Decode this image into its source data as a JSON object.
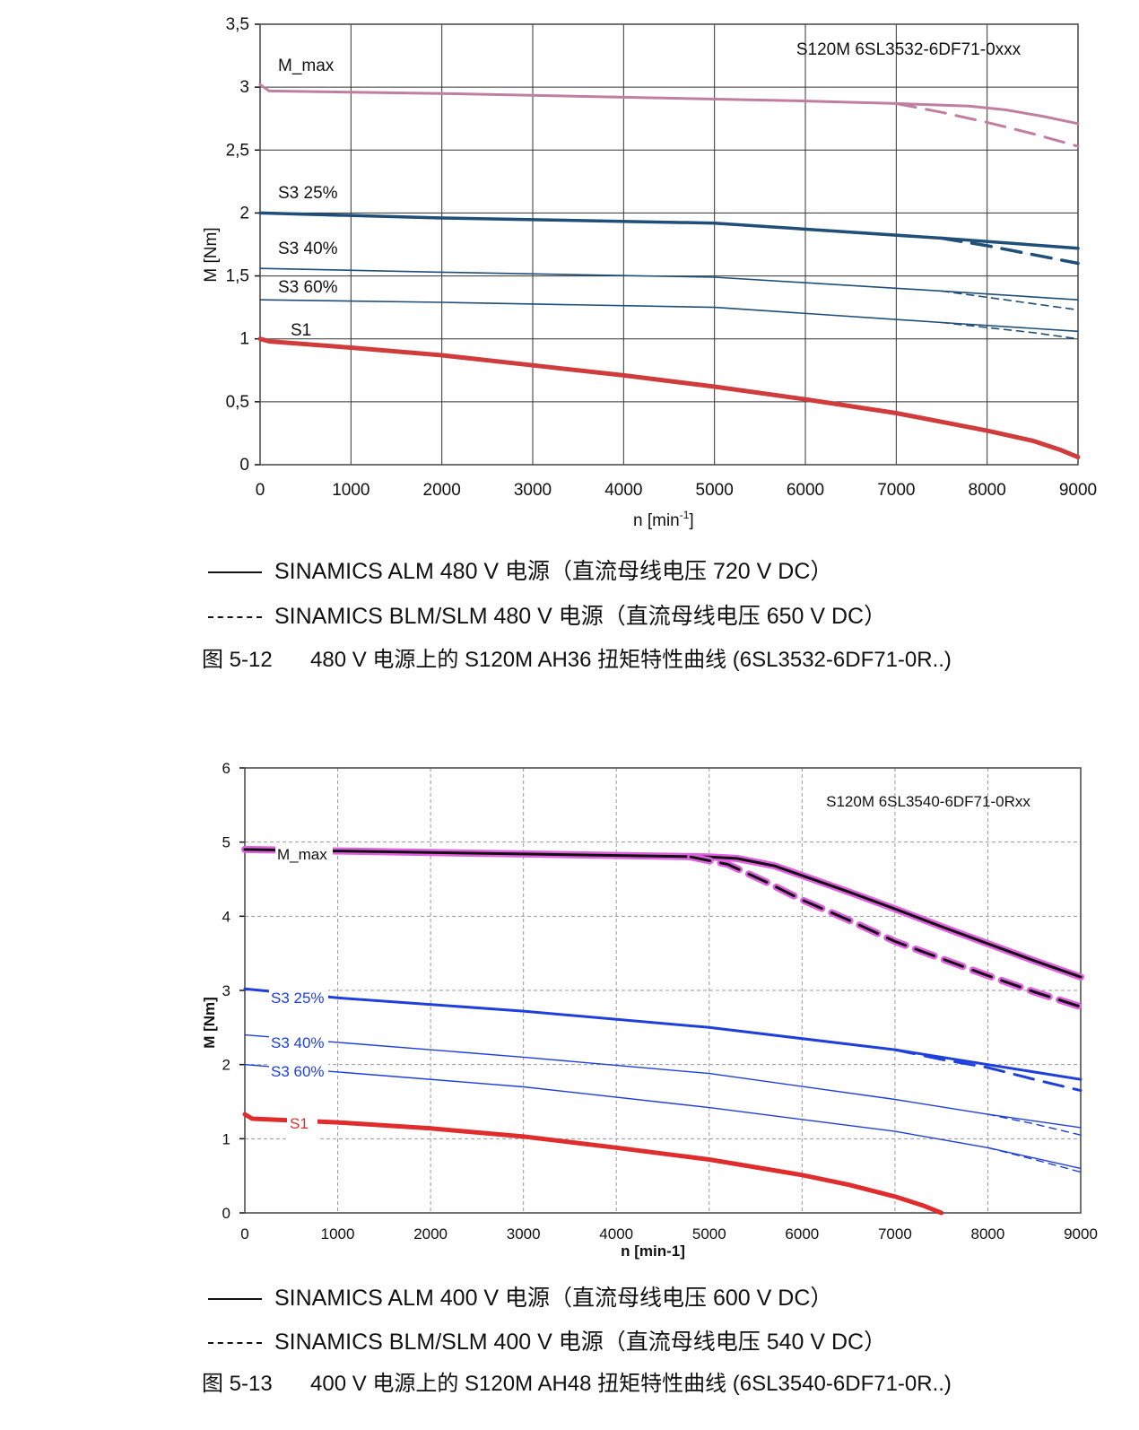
{
  "chart_data": [
    {
      "type": "line",
      "title": "S120M 6SL3532-6DF71-0xxx",
      "xlabel": "n  [min",
      "xlabel_sup": "-1",
      "xlabel_end": "]",
      "ylabel": "M [Nm]",
      "xlim": [
        0,
        9000
      ],
      "ylim": [
        0,
        3.5
      ],
      "xticks": [
        "0",
        "1000",
        "2000",
        "3000",
        "4000",
        "5000",
        "6000",
        "7000",
        "8000",
        "9000"
      ],
      "yticks": [
        "0",
        "0,5",
        "1",
        "1,5",
        "2",
        "2,5",
        "3",
        "3,5"
      ],
      "grid": true,
      "series": [
        {
          "name": "M_max",
          "color": "#c07fa0",
          "width": 3,
          "dash": false,
          "x": [
            0,
            100,
            2000,
            4000,
            6000,
            7000,
            7800,
            8200,
            8600,
            9000
          ],
          "y": [
            3.02,
            2.97,
            2.95,
            2.92,
            2.89,
            2.87,
            2.85,
            2.82,
            2.77,
            2.71
          ]
        },
        {
          "name": "",
          "color": "#c07fa0",
          "width": 3,
          "dash": true,
          "x": [
            7000,
            7500,
            8000,
            8500,
            9000
          ],
          "y": [
            2.87,
            2.8,
            2.72,
            2.63,
            2.53
          ]
        },
        {
          "name": "S3 25%",
          "color": "#1f4e79",
          "width": 3.5,
          "dash": false,
          "x": [
            0,
            2000,
            5000,
            7500,
            9000
          ],
          "y": [
            2.0,
            1.96,
            1.92,
            1.8,
            1.72
          ]
        },
        {
          "name": "",
          "color": "#1f4e79",
          "width": 3.5,
          "dash": true,
          "x": [
            7500,
            8000,
            8500,
            9000
          ],
          "y": [
            1.8,
            1.74,
            1.67,
            1.6
          ]
        },
        {
          "name": "S3 40%",
          "color": "#1f4e79",
          "width": 1.6,
          "dash": false,
          "x": [
            0,
            2000,
            5000,
            7500,
            9000
          ],
          "y": [
            1.56,
            1.53,
            1.49,
            1.38,
            1.31
          ]
        },
        {
          "name": "",
          "color": "#1f4e79",
          "width": 1.6,
          "dash": true,
          "x": [
            7500,
            8000,
            8500,
            9000
          ],
          "y": [
            1.38,
            1.33,
            1.28,
            1.23
          ]
        },
        {
          "name": "S3 60%",
          "color": "#1f4e79",
          "width": 1.6,
          "dash": false,
          "x": [
            0,
            2000,
            5000,
            7500,
            9000
          ],
          "y": [
            1.31,
            1.29,
            1.25,
            1.13,
            1.06
          ]
        },
        {
          "name": "",
          "color": "#1f4e79",
          "width": 1.6,
          "dash": true,
          "x": [
            7500,
            8000,
            8500,
            9000
          ],
          "y": [
            1.13,
            1.09,
            1.05,
            1.0
          ]
        },
        {
          "name": "S1",
          "color": "#d03c3c",
          "width": 5,
          "dash": false,
          "x": [
            0,
            100,
            1000,
            2000,
            3000,
            4000,
            5000,
            6000,
            7000,
            8000,
            8500,
            8800,
            9000
          ],
          "y": [
            1.0,
            0.98,
            0.93,
            0.87,
            0.79,
            0.71,
            0.62,
            0.52,
            0.41,
            0.27,
            0.19,
            0.12,
            0.06
          ]
        }
      ]
    },
    {
      "type": "line",
      "title": "S120M 6SL3540-6DF71-0Rxx",
      "xlabel": "n  [min-1]",
      "ylabel": "M  [Nm]",
      "xlim": [
        0,
        9000
      ],
      "ylim": [
        0,
        6
      ],
      "xticks": [
        "0",
        "1000",
        "2000",
        "3000",
        "4000",
        "5000",
        "6000",
        "7000",
        "8000",
        "9000"
      ],
      "yticks": [
        "0",
        "1",
        "2",
        "3",
        "4",
        "5",
        "6"
      ],
      "grid": true,
      "series": [
        {
          "name": "M_max",
          "color": "#111111",
          "halo": "#e060e0",
          "width": 3,
          "dash": false,
          "x": [
            0,
            1000,
            3000,
            5000,
            5300,
            5700,
            6000,
            6500,
            7000,
            7500,
            8000,
            8500,
            9000
          ],
          "y": [
            4.9,
            4.88,
            4.84,
            4.8,
            4.78,
            4.68,
            4.55,
            4.33,
            4.1,
            3.86,
            3.63,
            3.4,
            3.18
          ]
        },
        {
          "name": "",
          "color": "#111111",
          "halo": "#e060e0",
          "width": 3,
          "dash": true,
          "x": [
            4800,
            5200,
            5600,
            6000,
            6500,
            7000,
            7500,
            8000,
            8500,
            9000
          ],
          "y": [
            4.8,
            4.7,
            4.47,
            4.22,
            3.95,
            3.66,
            3.43,
            3.2,
            2.98,
            2.78
          ]
        },
        {
          "name": "S3 25%",
          "color": "#1f3fdc",
          "width": 3,
          "dash": false,
          "x": [
            0,
            1000,
            3000,
            5000,
            7000,
            8000,
            9000
          ],
          "y": [
            3.02,
            2.9,
            2.72,
            2.5,
            2.2,
            2.0,
            1.8
          ]
        },
        {
          "name": "",
          "color": "#1f3fdc",
          "width": 3,
          "dash": true,
          "x": [
            7000,
            7500,
            8000,
            8500,
            9000
          ],
          "y": [
            2.2,
            2.07,
            1.96,
            1.8,
            1.65
          ]
        },
        {
          "name": "S3 40%",
          "color": "#1f3fdc",
          "width": 1.4,
          "dash": false,
          "x": [
            0,
            1000,
            3000,
            5000,
            7000,
            8000,
            9000
          ],
          "y": [
            2.4,
            2.3,
            2.1,
            1.88,
            1.53,
            1.33,
            1.15
          ]
        },
        {
          "name": "",
          "color": "#1f3fdc",
          "width": 1.4,
          "dash": true,
          "x": [
            8000,
            8500,
            9000
          ],
          "y": [
            1.33,
            1.2,
            1.05
          ]
        },
        {
          "name": "S3 60%",
          "color": "#1f3fdc",
          "width": 1.4,
          "dash": false,
          "x": [
            0,
            1000,
            3000,
            5000,
            7000,
            8000,
            9000
          ],
          "y": [
            2.0,
            1.9,
            1.7,
            1.42,
            1.1,
            0.88,
            0.6
          ]
        },
        {
          "name": "",
          "color": "#1f3fdc",
          "width": 1.4,
          "dash": true,
          "x": [
            8000,
            8500,
            9000
          ],
          "y": [
            0.88,
            0.72,
            0.55
          ]
        },
        {
          "name": "S1",
          "color": "#e02c2c",
          "width": 5,
          "dash": false,
          "x": [
            0,
            80,
            1000,
            2000,
            3000,
            4000,
            5000,
            6000,
            6500,
            7000,
            7300,
            7500
          ],
          "y": [
            1.33,
            1.27,
            1.22,
            1.14,
            1.03,
            0.88,
            0.72,
            0.51,
            0.38,
            0.22,
            0.1,
            0.0
          ]
        }
      ]
    }
  ],
  "legend1": {
    "solid": "SINAMICS ALM 480 V 电源（直流母线电压 720 V DC）",
    "dashed": "SINAMICS BLM/SLM 480 V 电源（直流母线电压 650 V DC）"
  },
  "caption1": {
    "number": "图 5-12",
    "text": "480 V 电源上的 S120M AH36 扭矩特性曲线 (6SL3532-6DF71-0R..)"
  },
  "legend2": {
    "solid": "SINAMICS ALM 400 V 电源（直流母线电压 600 V DC）",
    "dashed": "SINAMICS BLM/SLM 400 V 电源（直流母线电压 540 V DC）"
  },
  "caption2": {
    "number": "图 5-13",
    "text": "400 V 电源上的 S120M AH48 扭矩特性曲线 (6SL3540-6DF71-0R..)"
  }
}
